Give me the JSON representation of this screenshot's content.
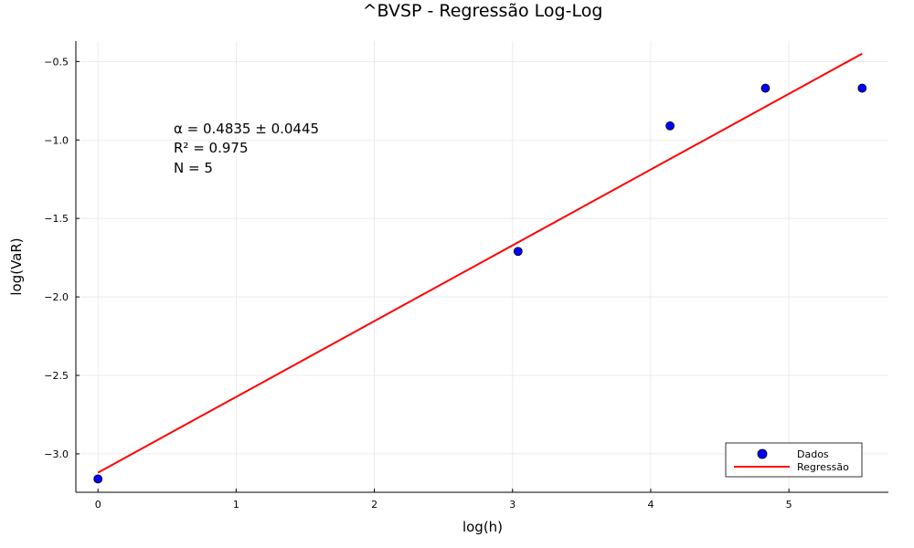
{
  "chart_data": {
    "type": "scatter",
    "title": "^BVSP - Regressão Log-Log",
    "xlabel": "log(h)",
    "ylabel": "log(VaR)",
    "xlim": [
      -0.16,
      5.72
    ],
    "ylim": [
      -3.245,
      -0.37
    ],
    "xticks": [
      0,
      1,
      2,
      3,
      4,
      5
    ],
    "yticks": [
      -3.0,
      -2.5,
      -2.0,
      -1.5,
      -1.0,
      -0.5
    ],
    "xtick_labels": [
      "0",
      "1",
      "2",
      "3",
      "4",
      "5"
    ],
    "ytick_labels": [
      "−3.0",
      "−2.5",
      "−2.0",
      "−1.5",
      "−1.0",
      "−0.5"
    ],
    "grid": true,
    "legend_position": "bottom-right",
    "series": [
      {
        "name": "Dados",
        "kind": "scatter",
        "color": "#0000ff",
        "x": [
          0.0,
          3.04,
          4.14,
          4.83,
          5.53
        ],
        "y": [
          -3.16,
          -1.71,
          -0.91,
          -0.67,
          -0.67
        ]
      },
      {
        "name": "Regressão",
        "kind": "line",
        "color": "#ff0000",
        "x": [
          0.0,
          5.53
        ],
        "y": [
          -3.12,
          -0.45
        ]
      }
    ],
    "annotations": [
      "α = 0.4835 ± 0.0445",
      "R² = 0.975",
      "N = 5"
    ]
  }
}
